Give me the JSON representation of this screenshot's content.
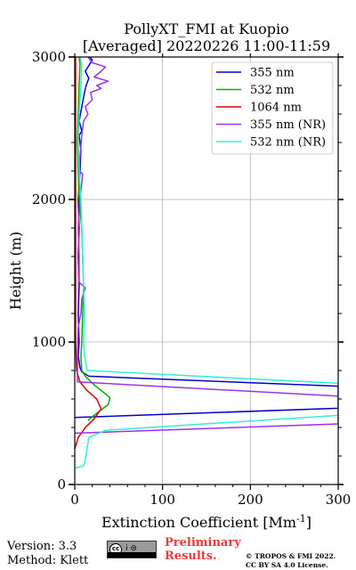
{
  "chart_data": {
    "type": "line",
    "title_line1": "PollyXT_FMI at Kuopio",
    "title_line2": "[Averaged] 20220226 11:00-11:59",
    "xlabel": "Extinction Coefficient [Mm",
    "xlabel_sup": "-1",
    "xlabel_end": "]",
    "ylabel": "Height (m)",
    "xlim": [
      0,
      300
    ],
    "ylim": [
      0,
      3000
    ],
    "x_ticks": [
      "0",
      "100",
      "200",
      "300"
    ],
    "y_ticks": [
      "0",
      "1000",
      "2000",
      "3000"
    ],
    "grid": true,
    "legend_position": "top-right",
    "series": [
      {
        "name": "355 nm",
        "color": "#0000cc",
        "points": [
          [
            -1,
            470
          ],
          [
            300,
            535
          ],
          [
            300,
            690
          ],
          [
            16,
            760
          ],
          [
            8,
            790
          ],
          [
            6,
            820
          ],
          [
            4,
            900
          ],
          [
            5,
            1000
          ],
          [
            4,
            1200
          ],
          [
            5,
            1400
          ],
          [
            4,
            1600
          ],
          [
            5,
            1800
          ],
          [
            4,
            2000
          ],
          [
            6,
            2200
          ],
          [
            7,
            2350
          ],
          [
            5,
            2450
          ],
          [
            8,
            2480
          ],
          [
            5,
            2550
          ],
          [
            8,
            2650
          ],
          [
            11,
            2750
          ],
          [
            13,
            2800
          ],
          [
            16,
            2850
          ],
          [
            12,
            2900
          ],
          [
            17,
            2950
          ],
          [
            20,
            2980
          ],
          [
            17,
            3000
          ]
        ]
      },
      {
        "name": "532 nm",
        "color": "#00b000",
        "points": [
          [
            15,
            450
          ],
          [
            25,
            500
          ],
          [
            38,
            560
          ],
          [
            40,
            610
          ],
          [
            32,
            650
          ],
          [
            22,
            700
          ],
          [
            12,
            760
          ],
          [
            8,
            800
          ],
          [
            7,
            900
          ],
          [
            8,
            1000
          ],
          [
            9,
            1200
          ],
          [
            10,
            1400
          ],
          [
            9,
            1600
          ],
          [
            8,
            1800
          ],
          [
            5,
            2000
          ],
          [
            4,
            2200
          ],
          [
            3,
            2400
          ],
          [
            4,
            2600
          ],
          [
            5,
            2800
          ],
          [
            6,
            2950
          ],
          [
            5,
            3000
          ]
        ]
      },
      {
        "name": "1064 nm",
        "color": "#dd0000",
        "points": [
          [
            0,
            250
          ],
          [
            4,
            330
          ],
          [
            12,
            400
          ],
          [
            22,
            460
          ],
          [
            30,
            530
          ],
          [
            25,
            600
          ],
          [
            14,
            660
          ],
          [
            6,
            720
          ],
          [
            2,
            800
          ],
          [
            1,
            1000
          ],
          [
            1,
            1500
          ],
          [
            1,
            2000
          ],
          [
            1,
            2500
          ],
          [
            1,
            3000
          ]
        ]
      },
      {
        "name": "355 nm (NR)",
        "color": "#9932e8",
        "points": [
          [
            0,
            360
          ],
          [
            300,
            425
          ],
          [
            300,
            620
          ],
          [
            3,
            720
          ],
          [
            3,
            900
          ],
          [
            4,
            1100
          ],
          [
            7,
            1200
          ],
          [
            8,
            1300
          ],
          [
            12,
            1380
          ],
          [
            5,
            1420
          ],
          [
            5,
            1600
          ],
          [
            4,
            1800
          ],
          [
            6,
            2000
          ],
          [
            9,
            2180
          ],
          [
            5,
            2200
          ],
          [
            6,
            2300
          ],
          [
            8,
            2450
          ],
          [
            10,
            2550
          ],
          [
            15,
            2600
          ],
          [
            12,
            2650
          ],
          [
            20,
            2700
          ],
          [
            18,
            2750
          ],
          [
            30,
            2780
          ],
          [
            25,
            2800
          ],
          [
            38,
            2830
          ],
          [
            22,
            2860
          ],
          [
            30,
            2900
          ],
          [
            35,
            2930
          ],
          [
            20,
            2960
          ],
          [
            15,
            3000
          ]
        ]
      },
      {
        "name": "532 nm (NR)",
        "color": "#33eed6",
        "points": [
          [
            0,
            115
          ],
          [
            10,
            130
          ],
          [
            12,
            170
          ],
          [
            14,
            250
          ],
          [
            16,
            330
          ],
          [
            35,
            380
          ],
          [
            300,
            485
          ],
          [
            300,
            710
          ],
          [
            14,
            800
          ],
          [
            11,
            900
          ],
          [
            10,
            1000
          ],
          [
            11,
            1200
          ],
          [
            10,
            1400
          ],
          [
            9,
            1600
          ],
          [
            8,
            1800
          ],
          [
            7,
            2000
          ],
          [
            5,
            2200
          ],
          [
            4,
            2400
          ],
          [
            5,
            2600
          ],
          [
            7,
            2800
          ],
          [
            8,
            2950
          ],
          [
            6,
            3000
          ]
        ]
      }
    ]
  },
  "footer": {
    "version": "Version: 3.3",
    "method": "Method: Klett",
    "cc_label": "cc",
    "cc_icons": "i ⊜",
    "preliminary_line1": "Preliminary",
    "preliminary_line2": "Results.",
    "copyright_line1": "© TROPOS & FMI 2022.",
    "copyright_line2": "CC BY SA 4.0 License."
  }
}
